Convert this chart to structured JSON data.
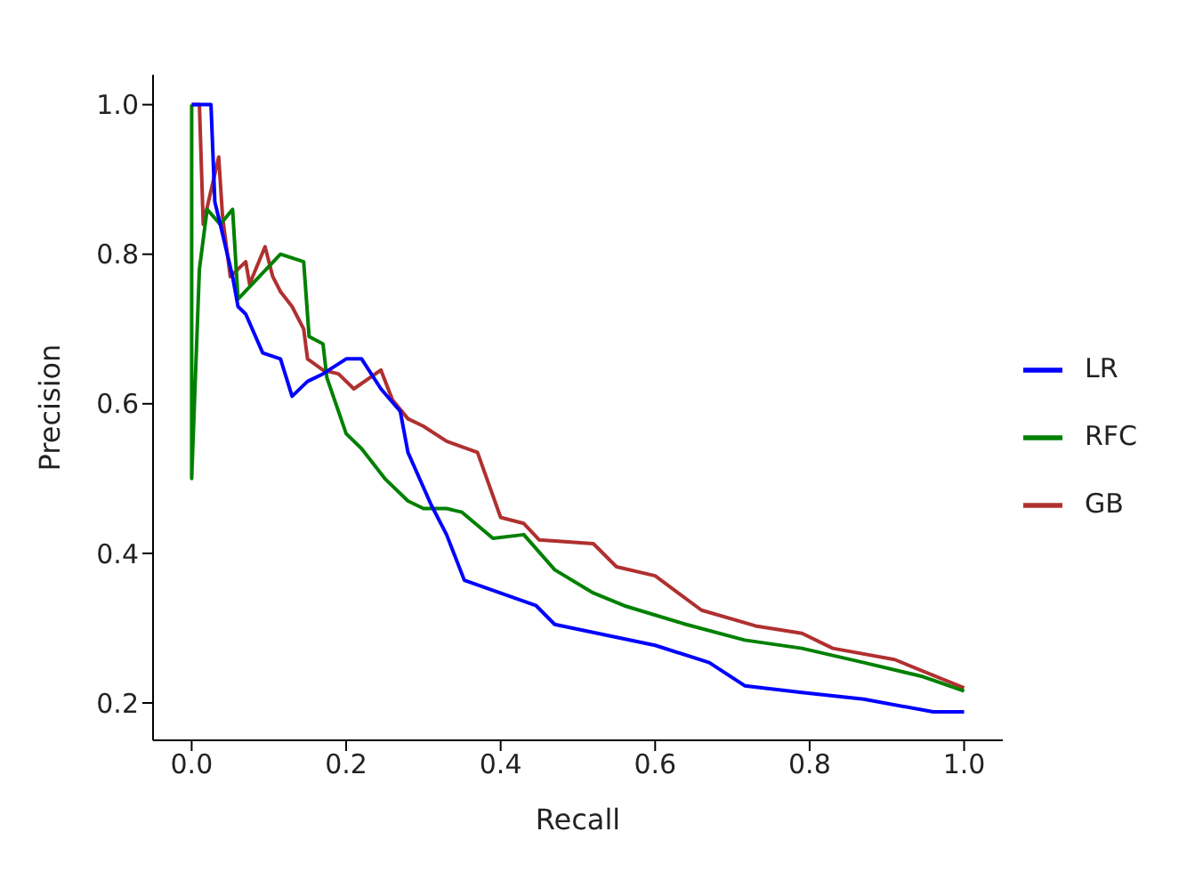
{
  "chart_data": {
    "type": "line",
    "xlabel": "Recall",
    "ylabel": "Precision",
    "xlim": [
      -0.05,
      1.05
    ],
    "ylim": [
      0.15,
      1.04
    ],
    "xticks": [
      {
        "value": 0,
        "label": "0.0"
      },
      {
        "value": 0.2,
        "label": "0.2"
      },
      {
        "value": 0.4,
        "label": "0.4"
      },
      {
        "value": 0.6,
        "label": "0.6"
      },
      {
        "value": 0.8,
        "label": "0.8"
      },
      {
        "value": 1,
        "label": "1.0"
      }
    ],
    "yticks": [
      {
        "value": 0.2,
        "label": "0.2"
      },
      {
        "value": 0.4,
        "label": "0.4"
      },
      {
        "value": 0.6,
        "label": "0.6"
      },
      {
        "value": 0.8,
        "label": "0.8"
      },
      {
        "value": 1,
        "label": "1.0"
      }
    ],
    "grid": false,
    "legend": "right",
    "marker": "none",
    "line_style": "solid",
    "series": [
      {
        "name": "LR",
        "color": "#0000ff",
        "x": [
          0,
          0.025,
          0.03,
          0.037,
          0.053,
          0.06,
          0.07,
          0.092,
          0.115,
          0.13,
          0.15,
          0.17,
          0.2,
          0.22,
          0.245,
          0.27,
          0.28,
          0.31,
          0.33,
          0.353,
          0.446,
          0.47,
          0.6,
          0.67,
          0.716,
          0.79,
          0.87,
          0.96,
          1.0
        ],
        "values": [
          1.0,
          1.0,
          0.87,
          0.84,
          0.77,
          0.73,
          0.72,
          0.668,
          0.66,
          0.61,
          0.63,
          0.64,
          0.66,
          0.66,
          0.62,
          0.59,
          0.535,
          0.465,
          0.425,
          0.364,
          0.33,
          0.305,
          0.277,
          0.254,
          0.223,
          0.214,
          0.205,
          0.188,
          0.188
        ]
      },
      {
        "name": "RFC",
        "color": "#008000",
        "x": [
          0,
          0,
          0.01,
          0.02,
          0.037,
          0.053,
          0.06,
          0.115,
          0.145,
          0.152,
          0.17,
          0.175,
          0.19,
          0.2,
          0.22,
          0.25,
          0.28,
          0.3,
          0.33,
          0.35,
          0.39,
          0.43,
          0.47,
          0.52,
          0.56,
          0.64,
          0.716,
          0.79,
          0.87,
          0.947,
          1.0
        ],
        "values": [
          1.0,
          0.5,
          0.78,
          0.86,
          0.84,
          0.86,
          0.74,
          0.8,
          0.79,
          0.69,
          0.68,
          0.635,
          0.59,
          0.56,
          0.54,
          0.5,
          0.47,
          0.46,
          0.46,
          0.455,
          0.42,
          0.425,
          0.378,
          0.347,
          0.33,
          0.305,
          0.284,
          0.273,
          0.254,
          0.235,
          0.216
        ]
      },
      {
        "name": "GB",
        "color": "#b03030",
        "x": [
          0,
          0.01,
          0.015,
          0.035,
          0.04,
          0.05,
          0.07,
          0.075,
          0.095,
          0.105,
          0.115,
          0.13,
          0.145,
          0.15,
          0.17,
          0.19,
          0.21,
          0.245,
          0.26,
          0.28,
          0.3,
          0.33,
          0.37,
          0.4,
          0.43,
          0.45,
          0.52,
          0.55,
          0.6,
          0.66,
          0.73,
          0.79,
          0.83,
          0.91,
          1.0
        ],
        "values": [
          1.0,
          1.0,
          0.84,
          0.93,
          0.85,
          0.77,
          0.79,
          0.76,
          0.81,
          0.77,
          0.75,
          0.73,
          0.7,
          0.66,
          0.645,
          0.64,
          0.62,
          0.645,
          0.605,
          0.58,
          0.57,
          0.55,
          0.535,
          0.448,
          0.44,
          0.418,
          0.413,
          0.382,
          0.37,
          0.324,
          0.303,
          0.293,
          0.273,
          0.258,
          0.22
        ]
      }
    ]
  }
}
